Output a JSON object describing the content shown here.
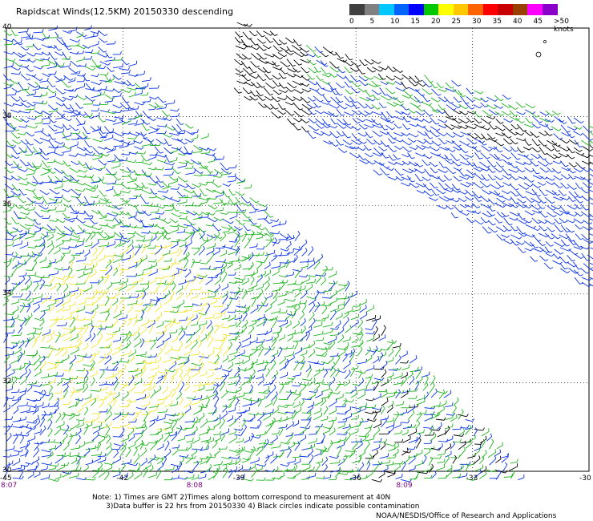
{
  "title": "Rapidscat Winds(12.5KM) 20150330 descending",
  "latitudes": [
    {
      "value": "40",
      "lat": 40
    },
    {
      "value": "38",
      "lat": 38
    },
    {
      "value": "36",
      "lat": 36
    },
    {
      "value": "34",
      "lat": 34
    },
    {
      "value": "32",
      "lat": 32
    },
    {
      "value": "30",
      "lat": 30
    }
  ],
  "longitudes": [
    {
      "value": "-45",
      "lon": -45
    },
    {
      "value": "-42",
      "lon": -42
    },
    {
      "value": "-39",
      "lon": -39
    },
    {
      "value": "-36",
      "lon": -36
    },
    {
      "value": "-33",
      "lon": -33
    },
    {
      "value": "-30",
      "lon": -30
    }
  ],
  "times": [
    {
      "value": "8:07",
      "lon": -45
    },
    {
      "value": "8:08",
      "lon": -40.2
    },
    {
      "value": "8:09",
      "lon": -34.8
    }
  ],
  "legend": {
    "labels": [
      "0",
      "5",
      "10",
      "15",
      "20",
      "25",
      "30",
      "35",
      "40",
      "45",
      ">50 knots"
    ],
    "colors": [
      "#404040",
      "#808080",
      "#00c8ff",
      "#0064ff",
      "#0000ff",
      "#00c800",
      "#ffff00",
      "#ffc800",
      "#ff6400",
      "#ff0000",
      "#c80000",
      "#9b3f00",
      "#ff00ff",
      "#8b00c8"
    ]
  },
  "wind_color_scale": {
    "blue": "#0a32e6",
    "green": "#1eb41e",
    "yellow": "#f0e632",
    "black": "#000000"
  },
  "notes": [
    "Note: 1) Times are GMT 2)Times along bottom correspond to measurement at 40N",
    "3)Data buffer is 22 hrs from 20150330 4) Black circles indicate possible contamination"
  ],
  "credit": "NOAA/NESDIS/Office of Research and Applications"
}
